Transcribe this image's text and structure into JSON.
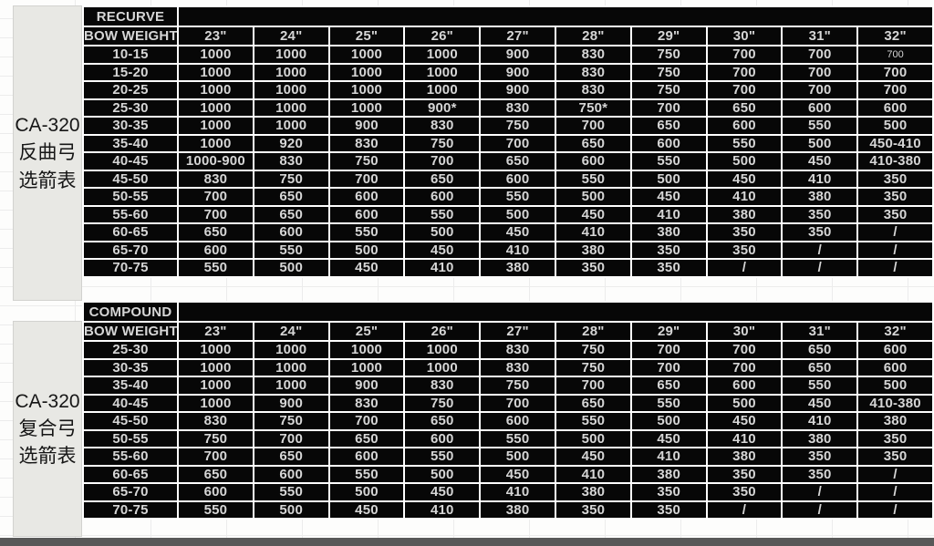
{
  "sidebar": {
    "recurve": {
      "lines": [
        "CA-320",
        "反曲弓",
        "选箭表"
      ]
    },
    "compound": {
      "lines": [
        "CA-320",
        "复合弓",
        "选箭表"
      ]
    }
  },
  "tables": [
    {
      "id": "recurve",
      "section_label": "RECURVE",
      "row_header_label": "BOW WEIGHT",
      "columns": [
        "23\"",
        "24\"",
        "25\"",
        "26\"",
        "27\"",
        "28\"",
        "29\"",
        "30\"",
        "31\"",
        "32\""
      ],
      "rows": [
        {
          "label": "10-15",
          "values": [
            "1000",
            "1000",
            "1000",
            "1000",
            "900",
            "830",
            "750",
            "700",
            "700",
            "700"
          ]
        },
        {
          "label": "15-20",
          "values": [
            "1000",
            "1000",
            "1000",
            "1000",
            "900",
            "830",
            "750",
            "700",
            "700",
            "700"
          ]
        },
        {
          "label": "20-25",
          "values": [
            "1000",
            "1000",
            "1000",
            "1000",
            "900",
            "830",
            "750",
            "700",
            "700",
            "700"
          ]
        },
        {
          "label": "25-30",
          "values": [
            "1000",
            "1000",
            "1000",
            "900*",
            "830",
            "750*",
            "700",
            "650",
            "600",
            "600"
          ]
        },
        {
          "label": "30-35",
          "values": [
            "1000",
            "1000",
            "900",
            "830",
            "750",
            "700",
            "650",
            "600",
            "550",
            "500"
          ]
        },
        {
          "label": "35-40",
          "values": [
            "1000",
            "920",
            "830",
            "750",
            "700",
            "650",
            "600",
            "550",
            "500",
            "450-410"
          ]
        },
        {
          "label": "40-45",
          "values": [
            "1000-900",
            "830",
            "750",
            "700",
            "650",
            "600",
            "550",
            "500",
            "450",
            "410-380"
          ]
        },
        {
          "label": "45-50",
          "values": [
            "830",
            "750",
            "700",
            "650",
            "600",
            "550",
            "500",
            "450",
            "410",
            "350"
          ]
        },
        {
          "label": "50-55",
          "values": [
            "700",
            "650",
            "600",
            "600",
            "550",
            "500",
            "450",
            "410",
            "380",
            "350"
          ]
        },
        {
          "label": "55-60",
          "values": [
            "700",
            "650",
            "600",
            "550",
            "500",
            "450",
            "410",
            "380",
            "350",
            "350"
          ]
        },
        {
          "label": "60-65",
          "values": [
            "650",
            "600",
            "550",
            "500",
            "450",
            "410",
            "380",
            "350",
            "350",
            "/"
          ]
        },
        {
          "label": "65-70",
          "values": [
            "600",
            "550",
            "500",
            "450",
            "410",
            "380",
            "350",
            "350",
            "/",
            "/"
          ]
        },
        {
          "label": "70-75",
          "values": [
            "550",
            "500",
            "450",
            "410",
            "380",
            "350",
            "350",
            "/",
            "/",
            "/"
          ]
        }
      ]
    },
    {
      "id": "compound",
      "section_label": "COMPOUND",
      "row_header_label": "BOW WEIGHT",
      "columns": [
        "23\"",
        "24\"",
        "25\"",
        "26\"",
        "27\"",
        "28\"",
        "29\"",
        "30\"",
        "31\"",
        "32\""
      ],
      "rows": [
        {
          "label": "25-30",
          "values": [
            "1000",
            "1000",
            "1000",
            "1000",
            "830",
            "750",
            "700",
            "700",
            "650",
            "600"
          ]
        },
        {
          "label": "30-35",
          "values": [
            "1000",
            "1000",
            "1000",
            "1000",
            "830",
            "750",
            "700",
            "700",
            "650",
            "600"
          ]
        },
        {
          "label": "35-40",
          "values": [
            "1000",
            "1000",
            "900",
            "830",
            "750",
            "700",
            "650",
            "600",
            "550",
            "500"
          ]
        },
        {
          "label": "40-45",
          "values": [
            "1000",
            "900",
            "830",
            "750",
            "700",
            "650",
            "550",
            "500",
            "450",
            "410-380"
          ]
        },
        {
          "label": "45-50",
          "values": [
            "830",
            "750",
            "700",
            "650",
            "600",
            "550",
            "500",
            "450",
            "410",
            "380"
          ]
        },
        {
          "label": "50-55",
          "values": [
            "750",
            "700",
            "650",
            "600",
            "550",
            "500",
            "450",
            "410",
            "380",
            "350"
          ]
        },
        {
          "label": "55-60",
          "values": [
            "700",
            "650",
            "600",
            "550",
            "500",
            "450",
            "410",
            "380",
            "350",
            "350"
          ]
        },
        {
          "label": "60-65",
          "values": [
            "650",
            "600",
            "550",
            "500",
            "450",
            "410",
            "380",
            "350",
            "350",
            "/"
          ]
        },
        {
          "label": "65-70",
          "values": [
            "600",
            "550",
            "500",
            "450",
            "410",
            "380",
            "350",
            "350",
            "/",
            "/"
          ]
        },
        {
          "label": "70-75",
          "values": [
            "550",
            "500",
            "450",
            "410",
            "380",
            "350",
            "350",
            "/",
            "/",
            "/"
          ]
        }
      ]
    }
  ],
  "colors": {
    "cell_background": "#070707",
    "grid_line": "#ffffff",
    "cell_text": "#d6d6d6",
    "sidebar_background": "#e8e8e4",
    "sidebar_text": "#161616",
    "bottom_bar": "#585858"
  }
}
